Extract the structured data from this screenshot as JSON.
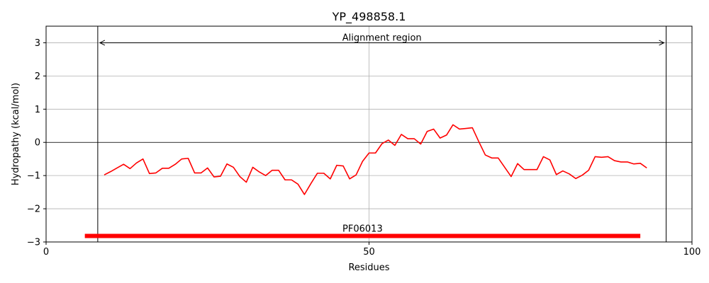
{
  "chart_data": {
    "type": "line",
    "title": "YP_498858.1",
    "xlabel": "Residues",
    "ylabel": "Hydropathy (kcal/mol)",
    "xlim": [
      0,
      100
    ],
    "ylim": [
      -3,
      3.5
    ],
    "xticks": [
      0,
      50,
      100
    ],
    "yticks": [
      -3,
      -2,
      -1,
      0,
      1,
      2,
      3
    ],
    "xtick_labels": [
      "0",
      "50",
      "100"
    ],
    "ytick_labels": [
      "−3",
      "−2",
      "−1",
      "0",
      "1",
      "2",
      "3"
    ],
    "grid": true,
    "series": [
      {
        "color": "#ff0000",
        "x": [
          9,
          10,
          11,
          12,
          13,
          14,
          15,
          16,
          17,
          18,
          19,
          20,
          21,
          22,
          23,
          24,
          25,
          26,
          27,
          28,
          29,
          30,
          31,
          32,
          33,
          34,
          35,
          36,
          37,
          38,
          39,
          40,
          41,
          42,
          43,
          44,
          45,
          46,
          47,
          48,
          49,
          50,
          51,
          52,
          53,
          54,
          55,
          56,
          57,
          58,
          59,
          60,
          61,
          62,
          63,
          64,
          65,
          66,
          67,
          68,
          69,
          70,
          71,
          72,
          73,
          74,
          75,
          76,
          77,
          78,
          79,
          80,
          81,
          82,
          83,
          84,
          85,
          86,
          87,
          88,
          89,
          90,
          91,
          92,
          93
        ],
        "y": [
          -0.98,
          -0.88,
          -0.77,
          -0.66,
          -0.79,
          -0.62,
          -0.5,
          -0.94,
          -0.92,
          -0.78,
          -0.78,
          -0.66,
          -0.5,
          -0.48,
          -0.92,
          -0.92,
          -0.77,
          -1.04,
          -1.02,
          -0.65,
          -0.75,
          -1.03,
          -1.2,
          -0.75,
          -0.89,
          -1.0,
          -0.84,
          -0.84,
          -1.13,
          -1.13,
          -1.26,
          -1.57,
          -1.24,
          -0.93,
          -0.93,
          -1.1,
          -0.69,
          -0.71,
          -1.1,
          -0.98,
          -0.57,
          -0.32,
          -0.32,
          -0.04,
          0.07,
          -0.09,
          0.24,
          0.11,
          0.11,
          -0.05,
          0.33,
          0.4,
          0.13,
          0.22,
          0.53,
          0.4,
          0.42,
          0.44,
          0.02,
          -0.38,
          -0.47,
          -0.47,
          -0.75,
          -1.03,
          -0.64,
          -0.82,
          -0.82,
          -0.82,
          -0.43,
          -0.53,
          -0.97,
          -0.86,
          -0.95,
          -1.09,
          -0.99,
          -0.84,
          -0.43,
          -0.45,
          -0.43,
          -0.55,
          -0.59,
          -0.59,
          -0.65,
          -0.63,
          -0.77
        ]
      }
    ],
    "vlines": [
      8,
      96
    ],
    "hline": 0,
    "alignment_label": "Alignment region",
    "alignment_arrow": {
      "x1": 8,
      "x2": 96,
      "y": 3.0
    },
    "domains": [
      {
        "name": "PF06013",
        "start": 6,
        "end": 92,
        "y": -2.82,
        "color": "#ff0000"
      }
    ]
  }
}
